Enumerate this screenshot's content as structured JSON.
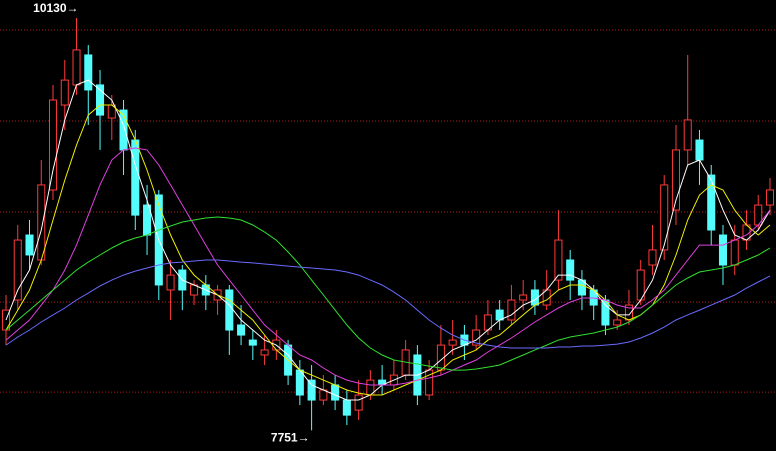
{
  "chart_data": {
    "type": "candlestick",
    "categories": [
      null,
      null,
      null,
      null,
      null,
      null,
      null,
      null,
      null,
      null,
      null,
      null,
      null,
      null,
      null,
      null,
      null,
      null,
      null,
      null,
      null,
      null,
      null,
      null,
      null,
      null,
      null,
      null,
      null,
      null,
      null,
      null,
      null,
      null,
      null,
      null,
      null,
      null,
      null,
      null,
      null,
      null,
      null,
      null,
      null,
      null,
      null,
      null,
      null,
      null,
      null,
      null,
      null,
      null,
      null,
      null,
      null,
      null,
      null,
      null,
      null,
      null,
      null,
      null,
      null,
      null
    ],
    "ylim": [
      7632,
      10234
    ],
    "ygrid": [
      10061,
      9536,
      9011,
      8491,
      7972
    ],
    "grid_color": "#b01818",
    "up_color": "#ff3a3a",
    "down_color": "#54fcfc",
    "open": [
      8330,
      8503,
      8878,
      8734,
      9138,
      9628,
      9744,
      9917,
      9744,
      9553,
      9599,
      9426,
      9051,
      9109,
      8561,
      8676,
      8532,
      8590,
      8503,
      8561,
      8359,
      8272,
      8186,
      8215,
      8243,
      8099,
      8041,
      7926,
      8013,
      7926,
      7868,
      7955,
      8041,
      8013,
      8070,
      8186,
      7955,
      8099,
      8243,
      8301,
      8243,
      8330,
      8445,
      8388,
      8503,
      8561,
      8474,
      8618,
      8734,
      8618,
      8561,
      8503,
      8359,
      8388,
      8503,
      8705,
      8792,
      9022,
      9369,
      9426,
      9224,
      8878,
      8705,
      8849,
      8936,
      9051
    ],
    "high": [
      8532,
      8936,
      8965,
      9311,
      9744,
      9888,
      10130,
      9974,
      9830,
      9686,
      9657,
      9484,
      9167,
      9138,
      8734,
      8705,
      8618,
      8647,
      8590,
      8590,
      8474,
      8330,
      8301,
      8330,
      8272,
      8157,
      8128,
      8070,
      8070,
      7984,
      8041,
      8099,
      8128,
      8157,
      8272,
      8243,
      8157,
      8359,
      8388,
      8359,
      8417,
      8503,
      8503,
      8590,
      8618,
      8618,
      8676,
      9022,
      8792,
      8676,
      8590,
      8532,
      8445,
      8561,
      8734,
      8936,
      9224,
      9513,
      9917,
      9484,
      9282,
      8936,
      8936,
      9022,
      9109,
      9207
    ],
    "low": [
      8243,
      8445,
      8676,
      8705,
      9080,
      9484,
      9686,
      9513,
      9369,
      9426,
      9224,
      8907,
      8763,
      8503,
      8388,
      8445,
      8474,
      8445,
      8417,
      8186,
      8243,
      8157,
      8128,
      8157,
      8013,
      7897,
      7751,
      7897,
      7868,
      7782,
      7811,
      7926,
      7955,
      7984,
      8041,
      7897,
      7926,
      8070,
      8186,
      8157,
      8215,
      8301,
      8330,
      8359,
      8445,
      8417,
      8445,
      8561,
      8503,
      8445,
      8388,
      8301,
      8330,
      8359,
      8474,
      8647,
      8734,
      8936,
      9282,
      9167,
      8820,
      8590,
      8647,
      8792,
      8907,
      8993
    ],
    "close": [
      8445,
      8849,
      8763,
      9167,
      9657,
      9772,
      9946,
      9715,
      9570,
      9628,
      9369,
      8993,
      8878,
      8590,
      8647,
      8561,
      8590,
      8532,
      8561,
      8330,
      8301,
      8243,
      8215,
      8272,
      8070,
      7955,
      7926,
      7984,
      7926,
      7839,
      7955,
      8041,
      8013,
      8070,
      8215,
      7955,
      8099,
      8243,
      8272,
      8243,
      8330,
      8417,
      8388,
      8503,
      8532,
      8474,
      8561,
      8849,
      8618,
      8532,
      8474,
      8359,
      8388,
      8474,
      8676,
      8792,
      9167,
      9369,
      9542,
      9311,
      8907,
      8705,
      8849,
      8936,
      9051,
      9138
    ],
    "lines": [
      {
        "color": "#ffffff",
        "values": [
          8388,
          8561,
          8676,
          8907,
          9253,
          9542,
          9744,
          9772,
          9715,
          9657,
          9513,
          9282,
          9080,
          8849,
          8705,
          8618,
          8590,
          8561,
          8532,
          8474,
          8388,
          8330,
          8272,
          8243,
          8186,
          8099,
          8013,
          7984,
          7955,
          7926,
          7926,
          7955,
          8013,
          8041,
          8070,
          8070,
          8099,
          8157,
          8215,
          8243,
          8272,
          8330,
          8388,
          8417,
          8474,
          8503,
          8561,
          8647,
          8647,
          8618,
          8561,
          8474,
          8417,
          8417,
          8503,
          8618,
          8820,
          9080,
          9282,
          9311,
          9195,
          9022,
          8878,
          8849,
          8907,
          9022
        ]
      },
      {
        "color": "#f0f000",
        "values": [
          8330,
          8445,
          8561,
          8734,
          8965,
          9195,
          9397,
          9570,
          9628,
          9628,
          9570,
          9426,
          9253,
          9051,
          8878,
          8734,
          8647,
          8590,
          8532,
          8503,
          8445,
          8388,
          8301,
          8215,
          8157,
          8099,
          8070,
          8041,
          8013,
          7984,
          7966,
          7955,
          7955,
          7984,
          8013,
          8041,
          8070,
          8099,
          8157,
          8186,
          8215,
          8272,
          8301,
          8359,
          8417,
          8474,
          8503,
          8561,
          8590,
          8590,
          8561,
          8503,
          8417,
          8388,
          8417,
          8474,
          8590,
          8763,
          8965,
          9109,
          9167,
          9138,
          9022,
          8936,
          8878,
          8936
        ]
      },
      {
        "color": "#e040e0",
        "values": [
          8272,
          8330,
          8388,
          8474,
          8561,
          8676,
          8820,
          8993,
          9167,
          9311,
          9369,
          9380,
          9369,
          9282,
          9167,
          9051,
          8936,
          8820,
          8705,
          8618,
          8532,
          8445,
          8359,
          8301,
          8243,
          8186,
          8157,
          8111,
          8070,
          8041,
          8024,
          8013,
          8013,
          8013,
          8024,
          8041,
          8053,
          8070,
          8099,
          8128,
          8157,
          8203,
          8243,
          8284,
          8330,
          8376,
          8417,
          8457,
          8491,
          8515,
          8515,
          8503,
          8474,
          8457,
          8457,
          8503,
          8561,
          8647,
          8734,
          8820,
          8820,
          8820,
          8849,
          8878,
          8936,
          9022
        ]
      },
      {
        "color": "#30e030",
        "values": [
          8330,
          8388,
          8445,
          8503,
          8561,
          8618,
          8676,
          8722,
          8763,
          8803,
          8838,
          8861,
          8878,
          8907,
          8930,
          8953,
          8965,
          8976,
          8982,
          8976,
          8965,
          8936,
          8895,
          8849,
          8780,
          8705,
          8618,
          8532,
          8445,
          8359,
          8284,
          8226,
          8186,
          8157,
          8145,
          8134,
          8122,
          8111,
          8099,
          8099,
          8105,
          8116,
          8128,
          8157,
          8186,
          8215,
          8243,
          8272,
          8290,
          8301,
          8313,
          8330,
          8347,
          8376,
          8417,
          8474,
          8532,
          8590,
          8630,
          8665,
          8676,
          8688,
          8705,
          8734,
          8763,
          8803
        ]
      },
      {
        "color": "#6a6aff",
        "values": [
          8243,
          8290,
          8330,
          8376,
          8417,
          8457,
          8503,
          8543,
          8584,
          8618,
          8647,
          8670,
          8688,
          8705,
          8717,
          8722,
          8728,
          8734,
          8734,
          8728,
          8722,
          8717,
          8711,
          8705,
          8699,
          8693,
          8688,
          8682,
          8676,
          8665,
          8647,
          8618,
          8590,
          8549,
          8503,
          8445,
          8388,
          8341,
          8301,
          8272,
          8255,
          8243,
          8232,
          8226,
          8226,
          8226,
          8226,
          8232,
          8232,
          8238,
          8238,
          8243,
          8249,
          8261,
          8284,
          8313,
          8347,
          8388,
          8417,
          8445,
          8474,
          8503,
          8532,
          8572,
          8607,
          8642
        ]
      }
    ],
    "annotations": [
      {
        "label": "10130→",
        "value": 10130,
        "field": "high"
      },
      {
        "label": "7751→",
        "value": 7751,
        "field": "low"
      }
    ]
  }
}
